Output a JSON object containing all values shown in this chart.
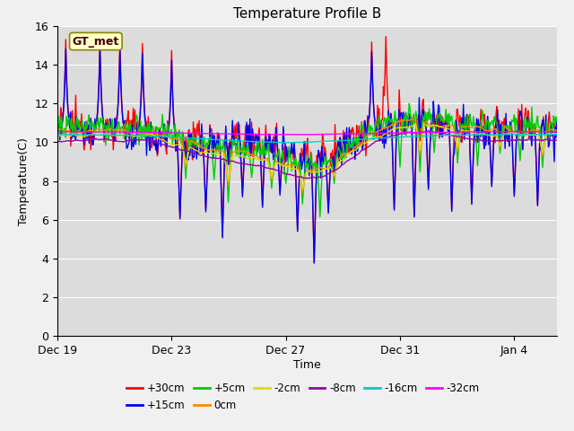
{
  "title": "Temperature Profile B",
  "xlabel": "Time",
  "ylabel": "Temperature(C)",
  "annotation": "GT_met",
  "ylim": [
    0,
    16
  ],
  "yticks": [
    0,
    2,
    4,
    6,
    8,
    10,
    12,
    14,
    16
  ],
  "xtick_labels": [
    "Dec 19",
    "Dec 23",
    "Dec 27",
    "Dec 31",
    "Jan 4"
  ],
  "xtick_positions": [
    0,
    4,
    8,
    12,
    16
  ],
  "xlim": [
    0,
    17.5
  ],
  "series": [
    {
      "label": "+30cm",
      "color": "#ff0000"
    },
    {
      "label": "+15cm",
      "color": "#0000ee"
    },
    {
      "label": "+5cm",
      "color": "#00cc00"
    },
    {
      "label": "0cm",
      "color": "#ff8800"
    },
    {
      "label": "-2cm",
      "color": "#dddd00"
    },
    {
      "label": "-8cm",
      "color": "#9900aa"
    },
    {
      "label": "-16cm",
      "color": "#00cccc"
    },
    {
      "label": "-32cm",
      "color": "#ff00ff"
    }
  ],
  "fig_bg": "#f0f0f0",
  "plot_bg": "#dcdcdc",
  "grid_color": "#ffffff",
  "title_fontsize": 11,
  "legend_fontsize": 8.5,
  "tick_fontsize": 9,
  "axis_label_fontsize": 9,
  "linewidth": 1.0
}
